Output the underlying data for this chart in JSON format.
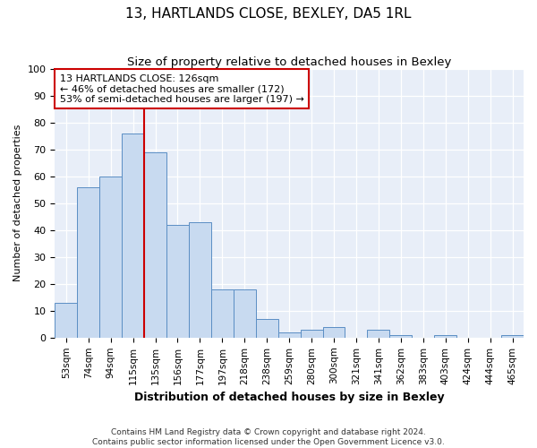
{
  "title": "13, HARTLANDS CLOSE, BEXLEY, DA5 1RL",
  "subtitle": "Size of property relative to detached houses in Bexley",
  "xlabel": "Distribution of detached houses by size in Bexley",
  "ylabel": "Number of detached properties",
  "categories": [
    "53sqm",
    "74sqm",
    "94sqm",
    "115sqm",
    "135sqm",
    "156sqm",
    "177sqm",
    "197sqm",
    "218sqm",
    "238sqm",
    "259sqm",
    "280sqm",
    "300sqm",
    "321sqm",
    "341sqm",
    "362sqm",
    "383sqm",
    "403sqm",
    "424sqm",
    "444sqm",
    "465sqm"
  ],
  "values": [
    13,
    56,
    60,
    76,
    69,
    42,
    43,
    18,
    18,
    7,
    2,
    3,
    4,
    0,
    3,
    1,
    0,
    1,
    0,
    0,
    1
  ],
  "bar_color": "#c8daf0",
  "bar_edgecolor": "#5b8ec4",
  "vline_x": 3.5,
  "vline_color": "#cc0000",
  "annotation_text": "13 HARTLANDS CLOSE: 126sqm\n← 46% of detached houses are smaller (172)\n53% of semi-detached houses are larger (197) →",
  "annotation_box_color": "white",
  "annotation_box_edgecolor": "#cc0000",
  "footnote": "Contains HM Land Registry data © Crown copyright and database right 2024.\nContains public sector information licensed under the Open Government Licence v3.0.",
  "ylim": [
    0,
    100
  ],
  "fig_facecolor": "white",
  "plot_facecolor": "#e8eef8",
  "grid_color": "white",
  "title_fontsize": 11,
  "subtitle_fontsize": 9.5,
  "xlabel_fontsize": 9,
  "ylabel_fontsize": 8,
  "ytick_fontsize": 8,
  "xtick_fontsize": 7.5,
  "footnote_fontsize": 6.5,
  "annot_fontsize": 8
}
